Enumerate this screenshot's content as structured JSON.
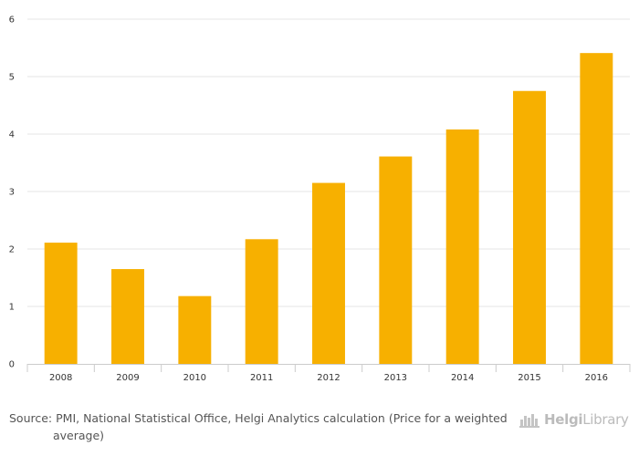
{
  "chart_data": {
    "type": "bar",
    "title": "",
    "xlabel": "",
    "ylabel": "",
    "categories": [
      "2008",
      "2009",
      "2010",
      "2011",
      "2012",
      "2013",
      "2014",
      "2015",
      "2016"
    ],
    "values": [
      2.11,
      1.65,
      1.18,
      2.17,
      3.15,
      3.61,
      4.08,
      4.75,
      5.41
    ],
    "ylim": [
      0,
      6
    ],
    "yticks": [
      "0",
      "1",
      "2",
      "3",
      "4",
      "5",
      "6"
    ],
    "grid": true,
    "bar_color": "#f7b000",
    "legend": "none"
  },
  "footer": {
    "source": "Source: PMI, National Statistical Office, Helgi Analytics calculation (Price for a weighted average)",
    "logo_part1": "Helgi",
    "logo_part2": "Library"
  }
}
